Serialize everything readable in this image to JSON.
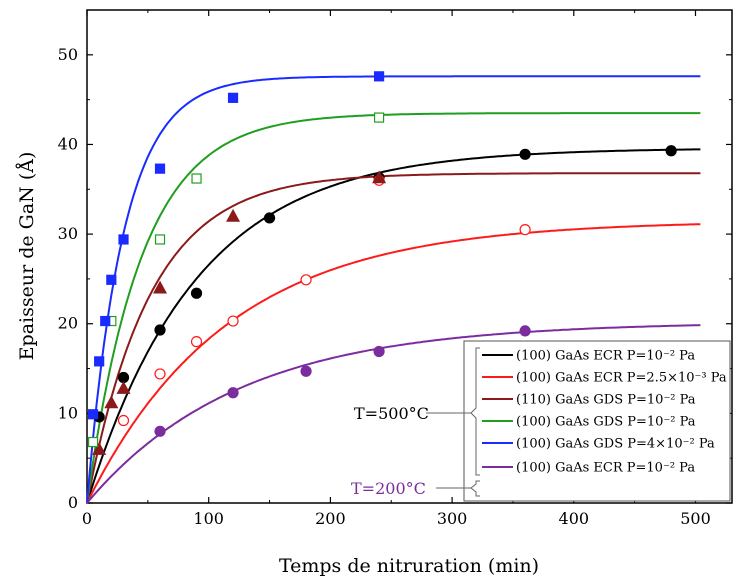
{
  "chart_data": {
    "type": "scatter",
    "xlabel": "Temps de nitruration (min)",
    "ylabel": "Epaisseur de GaN (Å)",
    "xlim": [
      0,
      530
    ],
    "ylim": [
      0,
      55
    ],
    "xticks": [
      "0",
      "100",
      "200",
      "300",
      "400",
      "500"
    ],
    "yticks": [
      "0",
      "10",
      "20",
      "30",
      "40",
      "50"
    ],
    "xtick_values": [
      0,
      100,
      200,
      300,
      400,
      500
    ],
    "ytick_values": [
      0,
      10,
      20,
      30,
      40,
      50
    ],
    "legend_position": "bottom-right",
    "group_labels": [
      {
        "text": "T=500°C",
        "color": "#000000"
      },
      {
        "text": "T=200°C",
        "color": "#7b2c9e"
      }
    ],
    "series": [
      {
        "name": "(100) GaAs ECR P=10⁻² Pa",
        "color": "#000000",
        "marker": "circle-filled",
        "fit": {
          "plateau": 39.6,
          "tau": 90
        },
        "x": [
          10,
          30,
          60,
          90,
          150,
          240,
          360,
          480
        ],
        "y": [
          9.6,
          14.0,
          19.3,
          23.4,
          31.8,
          36.3,
          38.9,
          39.3
        ]
      },
      {
        "name": "(100) GaAs ECR P=2.5×10⁻³ Pa",
        "color": "#ff1a1a",
        "marker": "circle-open",
        "fit": {
          "plateau": 31.5,
          "tau": 115
        },
        "x": [
          30,
          60,
          90,
          120,
          180,
          240,
          360
        ],
        "y": [
          9.2,
          14.4,
          18.0,
          20.3,
          24.9,
          36.0,
          30.5
        ]
      },
      {
        "name": "(110) GaAs GDS P=10⁻² Pa",
        "color": "#8b1a1a",
        "marker": "triangle-filled",
        "fit": {
          "plateau": 36.8,
          "tau": 52
        },
        "x": [
          10,
          20,
          30,
          60,
          120,
          240
        ],
        "y": [
          6.0,
          11.2,
          12.8,
          24.0,
          32.0,
          36.3
        ]
      },
      {
        "name": "(100) GaAs GDS P=10⁻² Pa",
        "color": "#1f9e1f",
        "marker": "square-open",
        "fit": {
          "plateau": 43.5,
          "tau": 45
        },
        "x": [
          5,
          20,
          60,
          90,
          240
        ],
        "y": [
          6.8,
          20.3,
          29.4,
          36.2,
          43.0
        ]
      },
      {
        "name": "(100) GaAs GDS P=4×10⁻² Pa",
        "color": "#1a2bff",
        "marker": "square-filled",
        "fit": {
          "plateau": 47.6,
          "tau": 30
        },
        "x": [
          5,
          10,
          15,
          20,
          30,
          60,
          120,
          240
        ],
        "y": [
          9.9,
          15.8,
          20.3,
          24.9,
          29.4,
          37.3,
          45.2,
          47.6
        ]
      },
      {
        "name": "(100) GaAs ECR P=10⁻² Pa",
        "color": "#7b2c9e",
        "marker": "circle-filled",
        "fit": {
          "plateau": 20.2,
          "tau": 125
        },
        "x": [
          60,
          120,
          180,
          240,
          360
        ],
        "y": [
          8.0,
          12.3,
          14.7,
          16.9,
          19.2
        ]
      }
    ]
  }
}
